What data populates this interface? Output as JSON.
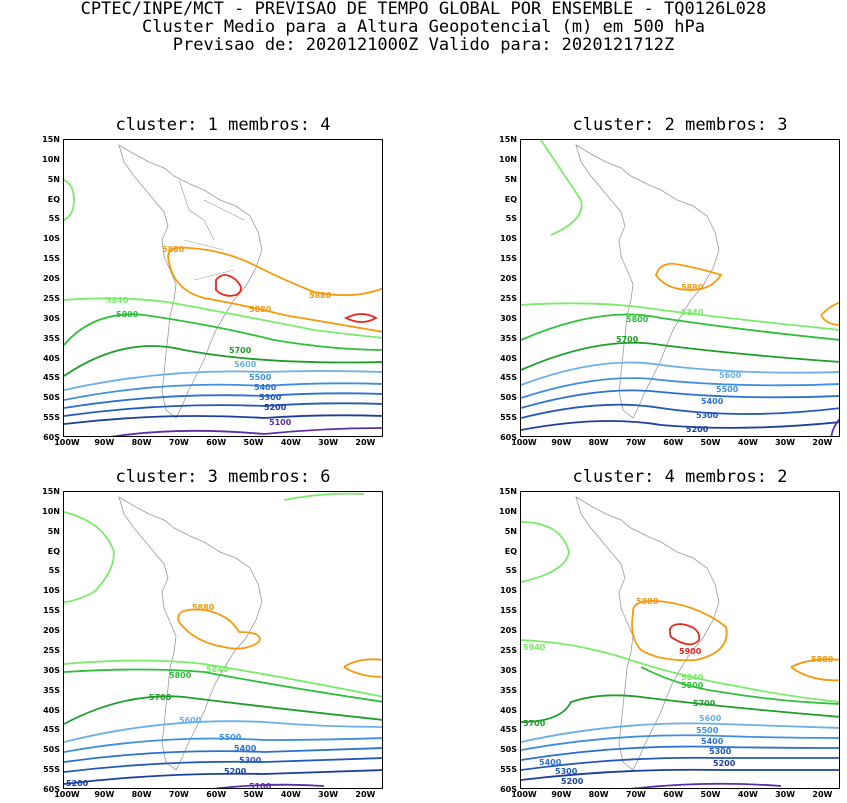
{
  "header": {
    "line1": "CPTEC/INPE/MCT - PREVISAO DE TEMPO GLOBAL POR ENSEMBLE - TQ0126L028",
    "line2": "Cluster Medio para a Altura Geopotencial (m) em 500 hPa",
    "line3": "Previsao de: 2020121000Z   Valido para: 2020121712Z"
  },
  "colors": {
    "5900": "#e8261a",
    "5880": "#f59a10",
    "5840": "#7aec6a",
    "5800": "#2fbf3a",
    "5700": "#1e9e2a",
    "5600": "#6aafe8",
    "5500": "#3f8fe0",
    "5400": "#2c70d0",
    "5300": "#2258b8",
    "5200": "#1c3f9e",
    "5100": "#5a2ea8",
    "coast": "#9a9a9a"
  },
  "axes": {
    "y_labels": [
      "15N",
      "10N",
      "5N",
      "EQ",
      "5S",
      "10S",
      "15S",
      "20S",
      "25S",
      "30S",
      "35S",
      "40S",
      "45S",
      "50S",
      "55S",
      "60S"
    ],
    "x_labels": [
      "100W",
      "90W",
      "80W",
      "70W",
      "60W",
      "50W",
      "40W",
      "30W",
      "20W"
    ]
  },
  "panels": [
    {
      "title": "cluster: 1   membros: 4",
      "labels": [
        "5880",
        "5880",
        "5880",
        "5840",
        "5800",
        "5700",
        "5600",
        "5500",
        "5400",
        "5300",
        "5200",
        "5100"
      ]
    },
    {
      "title": "cluster: 2   membros: 3",
      "labels": [
        "5880",
        "5840",
        "5800",
        "5700",
        "5600",
        "5500",
        "5400",
        "5300",
        "5200"
      ]
    },
    {
      "title": "cluster: 3   membros: 6",
      "labels": [
        "5880",
        "5840",
        "5800",
        "5700",
        "5600",
        "5500",
        "5400",
        "5300",
        "5200",
        "5100",
        "5200"
      ]
    },
    {
      "title": "cluster: 4   membros: 2",
      "labels": [
        "5880",
        "5880",
        "5900",
        "5840",
        "5840",
        "5800",
        "5700",
        "5700",
        "5600",
        "5500",
        "5400",
        "5400",
        "5300",
        "5300",
        "5200",
        "5200"
      ]
    }
  ]
}
